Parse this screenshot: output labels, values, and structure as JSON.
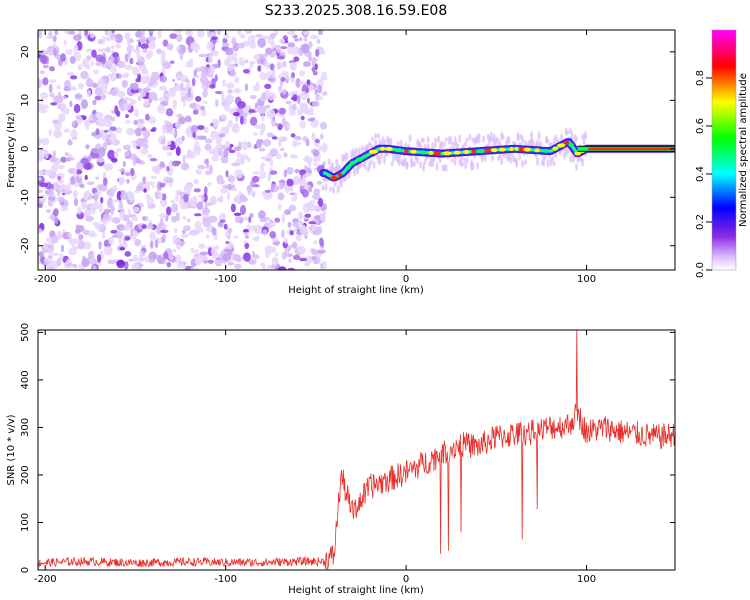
{
  "title": "S233.2025.308.16.59.E08",
  "chart_data": [
    {
      "type": "heatmap",
      "title": "S233.2025.308.16.59.E08",
      "xlabel": "Height of straight line (km)",
      "ylabel": "Frequency (Hz)",
      "xlim": [
        -204,
        149
      ],
      "ylim": [
        -25,
        24.5
      ],
      "xticks": [
        -200,
        -100,
        0,
        100
      ],
      "yticks": [
        -20,
        -10,
        0,
        10,
        20
      ],
      "noise_region_x": [
        -204,
        -45
      ],
      "signal_track": {
        "x": [
          -45,
          -40,
          -35,
          -30,
          -25,
          -20,
          -15,
          -10,
          0,
          20,
          40,
          60,
          80,
          90,
          95,
          100,
          149
        ],
        "freq": [
          -5,
          -6,
          -5,
          -3,
          -2,
          -1,
          0,
          0,
          -0.5,
          -1,
          -0.5,
          0,
          -0.5,
          1.5,
          -1,
          0,
          0
        ]
      },
      "colorbar": {
        "label": "Normalized spectral amplitude",
        "ticks": [
          0.0,
          0.2,
          0.4,
          0.6,
          0.8
        ],
        "tick_labels": [
          "0.0",
          "0.2",
          "0.4",
          "0.6",
          "0.8"
        ],
        "range": [
          0,
          1
        ],
        "colors": [
          "#ffffff",
          "#8a2be2",
          "#0000ff",
          "#00ffff",
          "#00ff00",
          "#ffff00",
          "#ff0000",
          "#ff00ff"
        ]
      }
    },
    {
      "type": "line",
      "xlabel": "Height of straight line (km)",
      "ylabel": "SNR (10 * v/v)",
      "xlim": [
        -204,
        149
      ],
      "ylim": [
        0,
        505
      ],
      "xticks": [
        -200,
        -100,
        0,
        100
      ],
      "yticks": [
        0,
        100,
        200,
        300,
        400,
        500
      ],
      "series": [
        {
          "name": "SNR",
          "color": "#e8302a",
          "x": [
            -204,
            -180,
            -150,
            -120,
            -100,
            -80,
            -60,
            -45,
            -40,
            -36,
            -33,
            -30,
            -20,
            -10,
            0,
            10,
            20,
            30,
            40,
            50,
            60,
            70,
            80,
            90,
            95,
            100,
            110,
            120,
            130,
            140,
            149
          ],
          "values": [
            15,
            18,
            15,
            17,
            16,
            16,
            18,
            18,
            30,
            200,
            160,
            120,
            175,
            190,
            205,
            225,
            245,
            265,
            260,
            280,
            285,
            290,
            300,
            305,
            330,
            290,
            300,
            290,
            285,
            280,
            285
          ]
        }
      ]
    }
  ]
}
